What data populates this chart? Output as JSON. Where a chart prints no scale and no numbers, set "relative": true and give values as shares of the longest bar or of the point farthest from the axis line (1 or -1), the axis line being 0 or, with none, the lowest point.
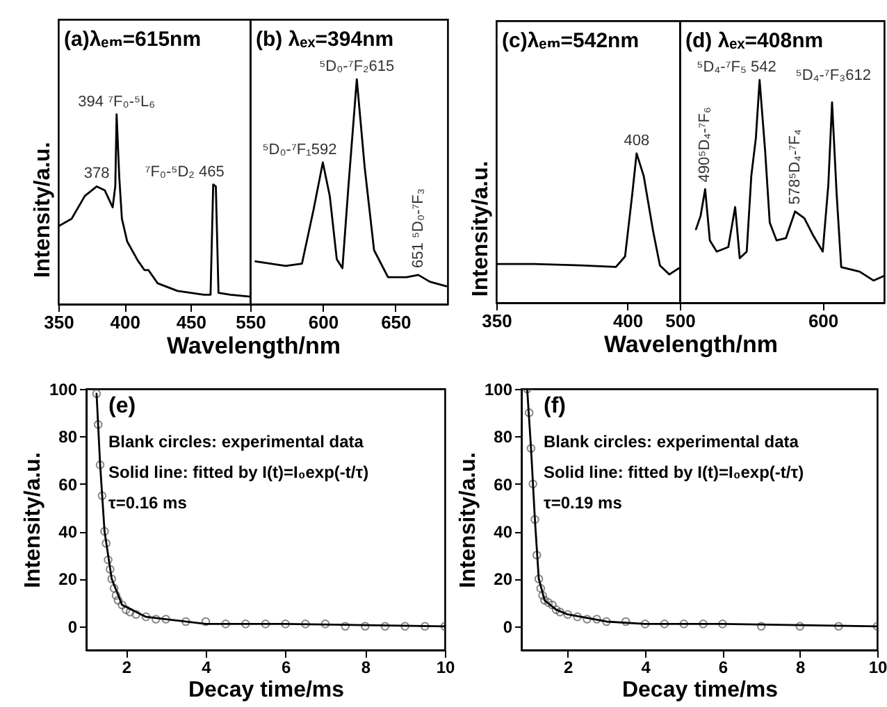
{
  "chart_data": [
    {
      "type": "line",
      "relative": true,
      "ylabel": "Intensity/a.u.",
      "xlabel": "Wavelength/nm",
      "xlim": [
        350,
        495
      ],
      "xticks": [
        350,
        400,
        450
      ],
      "tick_labels": "x",
      "series": [
        {
          "color": "#000000",
          "x": [
            350,
            360,
            370,
            379,
            385,
            391,
            393,
            394,
            396,
            398,
            402,
            410,
            415,
            418,
            425,
            440,
            460,
            465,
            467,
            469,
            471,
            480,
            495
          ],
          "values": [
            0.41,
            0.45,
            0.57,
            0.62,
            0.6,
            0.51,
            0.62,
            1.0,
            0.67,
            0.45,
            0.33,
            0.23,
            0.18,
            0.18,
            0.11,
            0.07,
            0.05,
            0.05,
            0.63,
            0.62,
            0.06,
            0.05,
            0.04
          ]
        }
      ],
      "annotations": [
        "(a)λₑₘ=615nm",
        {
          "text": "378",
          "x": 379,
          "y": 0.62
        },
        {
          "text": "394 ⁷F₀-⁵L₆",
          "x": 394,
          "y": 1.0
        },
        {
          "text": "⁷F₀-⁵D₂ 465",
          "x": 467,
          "y": 0.63
        }
      ]
    },
    {
      "type": "line",
      "relative": true,
      "xlim": [
        550,
        686
      ],
      "xticks": [
        550,
        600,
        650
      ],
      "tick_labels": "x",
      "series": [
        {
          "color": "#000000",
          "x": [
            553.6,
            574.4,
            585.6,
            593.6,
            600,
            604.8,
            609.6,
            613.5,
            617.7,
            623.4,
            628.8,
            635.3,
            644.9,
            657.7,
            665.8,
            673.7,
            685
          ],
          "values": [
            0.19,
            0.17,
            0.18,
            0.42,
            0.63,
            0.48,
            0.2,
            0.16,
            0.53,
            1.0,
            0.61,
            0.24,
            0.12,
            0.12,
            0.13,
            0.1,
            0.08
          ]
        }
      ],
      "annotations": [
        "(b) λₑₓ=394nm",
        {
          "text": "⁵D₀-⁷F₁592",
          "x": 600,
          "y": 0.63
        },
        {
          "text": "⁵D₀-⁷F₂615",
          "x": 623.4,
          "y": 1.0
        },
        {
          "text": "651 ⁵D₀-⁷F₃",
          "x": 665.8,
          "y": 0.13
        }
      ]
    },
    {
      "type": "line",
      "relative": true,
      "ylabel": "Intensity/a.u.",
      "xlabel": "Wavelength/nm",
      "xlim": [
        350,
        420
      ],
      "xticks": [
        350,
        400
      ],
      "tick_labels": "x",
      "series": [
        {
          "color": "#000000",
          "x": [
            350,
            364.5,
            382.3,
            395.6,
            399.1,
            401.8,
            403.5,
            406.2,
            409.8,
            412.4,
            416,
            419.5
          ],
          "values": [
            0.26,
            0.26,
            0.25,
            0.24,
            0.31,
            0.72,
            1.0,
            0.85,
            0.48,
            0.25,
            0.19,
            0.23
          ]
        }
      ],
      "annotations": [
        "(c)λₑₘ=542nm",
        {
          "text": "408",
          "x": 403.5,
          "y": 1.0
        }
      ]
    },
    {
      "type": "line",
      "relative": true,
      "xlim": [
        500,
        643
      ],
      "xticks": [
        500,
        600
      ],
      "tick_labels": "x",
      "series": [
        {
          "color": "#000000",
          "x": [
            511.3,
            514.5,
            517.7,
            521,
            525.8,
            533.9,
            538.7,
            541.9,
            546.8,
            550,
            553.2,
            555.8,
            559.7,
            562.9,
            567.7,
            574.2,
            580.6,
            587.1,
            593.5,
            600,
            603.9,
            606.5,
            609.7,
            612.9,
            625.8,
            635.5,
            642.6
          ],
          "values": [
            0.33,
            0.39,
            0.51,
            0.28,
            0.23,
            0.25,
            0.43,
            0.2,
            0.23,
            0.57,
            0.74,
            1.0,
            0.68,
            0.36,
            0.28,
            0.29,
            0.41,
            0.38,
            0.3,
            0.23,
            0.53,
            0.9,
            0.49,
            0.16,
            0.14,
            0.1,
            0.12
          ]
        }
      ],
      "annotations": [
        "(d) λₑₓ=408nm",
        {
          "text": "⁵D₄-⁷F₅ 542",
          "x": 555.8,
          "y": 1.0
        },
        {
          "text": "⁵D₄-⁷F₃612",
          "x": 606.5,
          "y": 0.9
        },
        {
          "text": "490⁵D₄-⁷F₆",
          "x": 517.7,
          "y": 0.51
        },
        {
          "text": "578⁵D₄-⁷F₄",
          "x": 580.6,
          "y": 0.41
        }
      ]
    },
    {
      "type": "scatter",
      "xlabel": "Decay time/ms",
      "ylabel": "Intensity/a.u.",
      "xlim": [
        1,
        10
      ],
      "xticks": [
        2,
        4,
        6,
        8,
        10
      ],
      "ylim": [
        -10,
        100
      ],
      "yticks": [
        0,
        20,
        40,
        60,
        80,
        100
      ],
      "series": [
        {
          "color": "#555555",
          "x": [
            1.26,
            1.3,
            1.35,
            1.4,
            1.46,
            1.5,
            1.55,
            1.6,
            1.64,
            1.7,
            1.75,
            1.8,
            1.9,
            2,
            2.1,
            2.25,
            2.5,
            2.75,
            3,
            3.5,
            4,
            4.5,
            5,
            5.5,
            6,
            6.5,
            7,
            7.5,
            8,
            8.5,
            9,
            9.5,
            10
          ],
          "values": [
            98,
            85,
            68,
            55,
            40,
            35,
            28,
            24,
            20,
            16,
            13,
            11,
            9,
            7,
            6,
            5,
            4,
            3,
            3,
            2,
            2,
            1,
            1,
            1,
            1,
            1,
            1,
            0,
            0,
            0,
            0,
            0,
            0
          ]
        },
        {
          "type": "line",
          "color": "#000000",
          "x": [
            1.26,
            1.35,
            1.46,
            1.64,
            1.9,
            2.5,
            3,
            4,
            6,
            10
          ],
          "values": [
            98,
            68,
            40,
            20,
            9,
            4,
            3,
            1,
            1,
            0
          ]
        }
      ],
      "annotations": [
        "(e)",
        "Blank circles: experimental data",
        "Solid line: fitted by I(t)=I₀exp(-t/τ)",
        "τ=0.16 ms"
      ]
    },
    {
      "type": "scatter",
      "xlabel": "Decay time/ms",
      "ylabel": "Intensity/a.u.",
      "xlim": [
        0.8,
        10
      ],
      "xticks": [
        2,
        4,
        6,
        8,
        10
      ],
      "ylim": [
        -10,
        100
      ],
      "yticks": [
        0,
        20,
        40,
        60,
        80,
        100
      ],
      "series": [
        {
          "color": "#555555",
          "x": [
            0.95,
            1,
            1.05,
            1.1,
            1.15,
            1.2,
            1.25,
            1.3,
            1.35,
            1.4,
            1.5,
            1.6,
            1.7,
            1.8,
            2,
            2.25,
            2.5,
            2.75,
            3,
            3.5,
            4,
            4.5,
            5,
            5.5,
            6,
            7,
            8,
            9,
            10
          ],
          "values": [
            100,
            90,
            75,
            60,
            45,
            30,
            20,
            16,
            13,
            11,
            10,
            9,
            7,
            6,
            5,
            4,
            3,
            3,
            2,
            2,
            1,
            1,
            1,
            1,
            1,
            0,
            0,
            0,
            0
          ]
        },
        {
          "type": "line",
          "color": "#000000",
          "x": [
            0.95,
            1.05,
            1.15,
            1.25,
            1.4,
            1.7,
            2,
            3,
            4,
            6,
            10
          ],
          "values": [
            100,
            75,
            45,
            20,
            11,
            7,
            5,
            2,
            1,
            1,
            0
          ]
        }
      ],
      "annotations": [
        "(f)",
        "Blank circles: experimental data",
        "Solid line: fitted by I(t)=I₀exp(-t/τ)",
        "τ=0.19 ms"
      ]
    }
  ]
}
